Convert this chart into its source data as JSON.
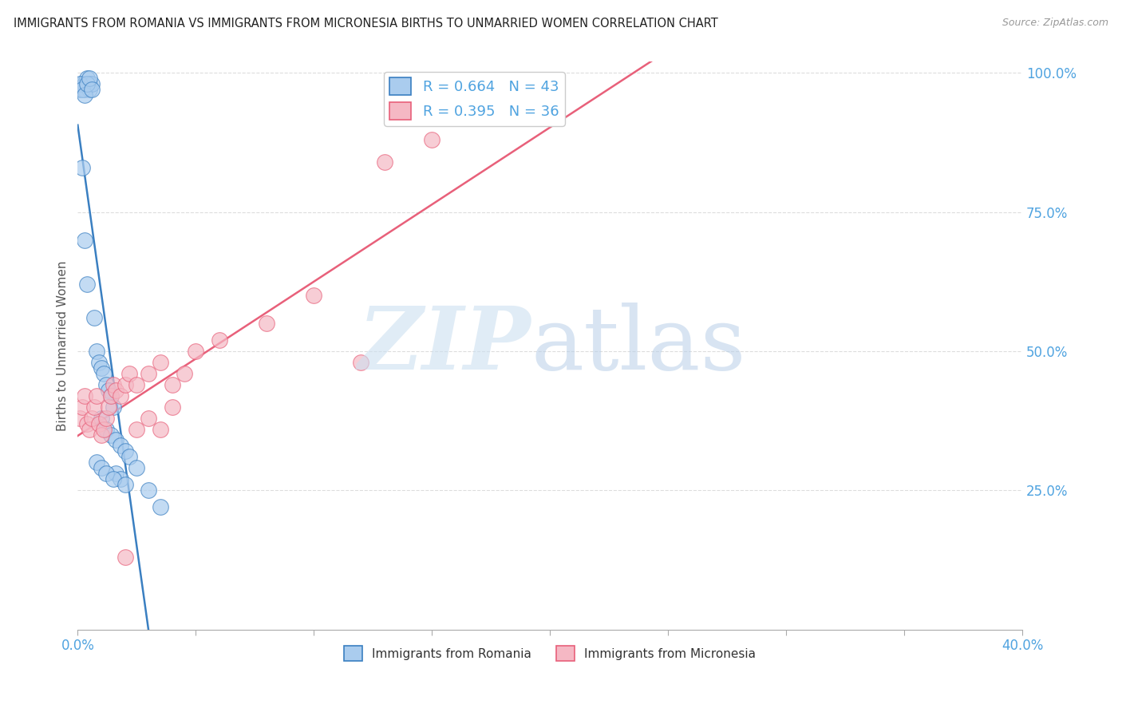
{
  "title": "IMMIGRANTS FROM ROMANIA VS IMMIGRANTS FROM MICRONESIA BIRTHS TO UNMARRIED WOMEN CORRELATION CHART",
  "source": "Source: ZipAtlas.com",
  "ylabel": "Births to Unmarried Women",
  "legend_label1": "Immigrants from Romania",
  "legend_label2": "Immigrants from Micronesia",
  "r1": 0.664,
  "n1": 43,
  "r2": 0.395,
  "n2": 36,
  "color_romania": "#aaccee",
  "color_micronesia": "#f5b8c4",
  "line_color_romania": "#3a7fc1",
  "line_color_micronesia": "#e8607a",
  "xlim": [
    0.0,
    0.4
  ],
  "ylim": [
    0.0,
    1.02
  ],
  "background_color": "#ffffff",
  "grid_color": "#dddddd",
  "title_color": "#222222",
  "axis_label_color": "#555555",
  "tick_label_color": "#4fa3e0",
  "romania_x": [
    0.001,
    0.002,
    0.003,
    0.003,
    0.004,
    0.005,
    0.005,
    0.006,
    0.001,
    0.002,
    0.003,
    0.004,
    0.005,
    0.006,
    0.002,
    0.003,
    0.004,
    0.007,
    0.008,
    0.009,
    0.01,
    0.011,
    0.012,
    0.013,
    0.014,
    0.015,
    0.01,
    0.012,
    0.014,
    0.016,
    0.018,
    0.02,
    0.022,
    0.025,
    0.016,
    0.018,
    0.03,
    0.035,
    0.008,
    0.01,
    0.012,
    0.015,
    0.02
  ],
  "romania_y": [
    0.97,
    0.98,
    0.97,
    0.98,
    0.99,
    0.98,
    0.97,
    0.98,
    0.98,
    0.97,
    0.96,
    0.98,
    0.99,
    0.97,
    0.83,
    0.7,
    0.62,
    0.56,
    0.5,
    0.48,
    0.47,
    0.46,
    0.44,
    0.43,
    0.42,
    0.4,
    0.38,
    0.36,
    0.35,
    0.34,
    0.33,
    0.32,
    0.31,
    0.29,
    0.28,
    0.27,
    0.25,
    0.22,
    0.3,
    0.29,
    0.28,
    0.27,
    0.26
  ],
  "micronesia_x": [
    0.001,
    0.002,
    0.003,
    0.004,
    0.005,
    0.006,
    0.007,
    0.008,
    0.009,
    0.01,
    0.011,
    0.012,
    0.013,
    0.014,
    0.015,
    0.016,
    0.018,
    0.02,
    0.022,
    0.025,
    0.03,
    0.035,
    0.04,
    0.045,
    0.05,
    0.06,
    0.08,
    0.1,
    0.12,
    0.15,
    0.025,
    0.03,
    0.035,
    0.04,
    0.13,
    0.02
  ],
  "micronesia_y": [
    0.38,
    0.4,
    0.42,
    0.37,
    0.36,
    0.38,
    0.4,
    0.42,
    0.37,
    0.35,
    0.36,
    0.38,
    0.4,
    0.42,
    0.44,
    0.43,
    0.42,
    0.44,
    0.46,
    0.44,
    0.46,
    0.48,
    0.44,
    0.46,
    0.5,
    0.52,
    0.55,
    0.6,
    0.48,
    0.88,
    0.36,
    0.38,
    0.36,
    0.4,
    0.84,
    0.13
  ],
  "watermark_zip_color": "#cce0f0",
  "watermark_atlas_color": "#b8cfe8"
}
